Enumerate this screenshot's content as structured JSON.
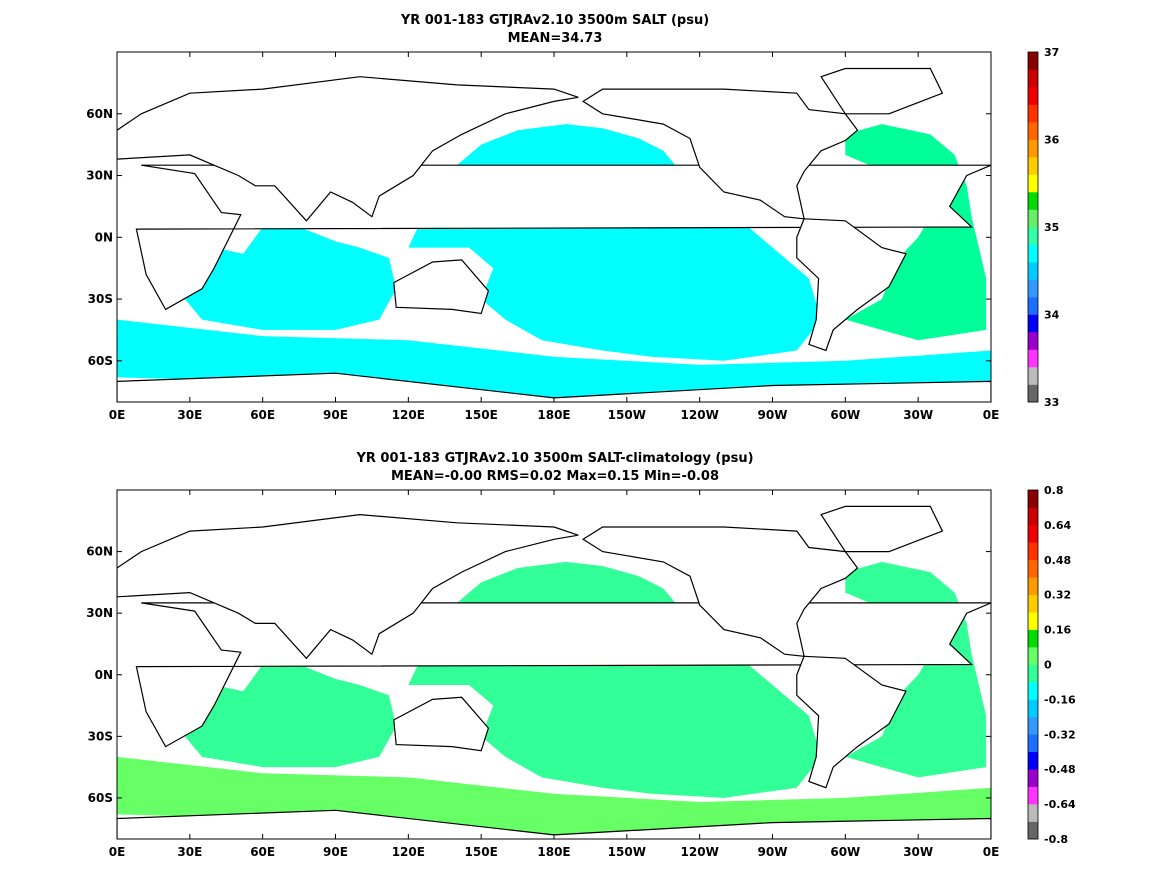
{
  "colors": {
    "land": "#ffffff",
    "coast": "#000000",
    "frame": "#000000"
  },
  "panels": [
    {
      "title_line1": "YR 001-183 GTJRAv2.10 3500m SALT (psu)",
      "title_line2": "MEAN=34.73",
      "x_ticks": [
        "0E",
        "30E",
        "60E",
        "90E",
        "120E",
        "150E",
        "180E",
        "150W",
        "120W",
        "90W",
        "60W",
        "30W",
        "0E"
      ],
      "y_ticks": [
        "60N",
        "30N",
        "0N",
        "30S",
        "60S"
      ],
      "colorbar": {
        "labels": [
          "37",
          "36",
          "35",
          "34",
          "33"
        ],
        "colors": [
          "#666666",
          "#bbbbbb",
          "#ff33ff",
          "#9900cc",
          "#0000ff",
          "#1e6fff",
          "#3399ff",
          "#00ccff",
          "#00ffff",
          "#33ffaa",
          "#66ee66",
          "#00dd00",
          "#ffff00",
          "#ffcc00",
          "#ff9900",
          "#ff6600",
          "#ff3300",
          "#ee0000",
          "#cc0000",
          "#880000"
        ]
      },
      "regions": [
        {
          "color": "#00ffff",
          "name": "Pacific"
        },
        {
          "color": "#00ffff",
          "name": "Indian"
        },
        {
          "color": "#00ffff",
          "name": "Southern"
        },
        {
          "color": "#00ff99",
          "name": "Atlantic"
        }
      ]
    },
    {
      "title_line1": "YR 001-183 GTJRAv2.10 3500m SALT-climatology (psu)",
      "title_line2": "MEAN=-0.00   RMS=0.02   Max=0.15   Min=-0.08",
      "x_ticks": [
        "0E",
        "30E",
        "60E",
        "90E",
        "120E",
        "150E",
        "180E",
        "150W",
        "120W",
        "90W",
        "60W",
        "30W",
        "0E"
      ],
      "y_ticks": [
        "60N",
        "30N",
        "0N",
        "30S",
        "60S"
      ],
      "colorbar": {
        "labels": [
          "0.8",
          "0.64",
          "0.48",
          "0.32",
          "0.16",
          "0",
          "-0.16",
          "-0.32",
          "-0.48",
          "-0.64",
          "-0.8"
        ],
        "colors": [
          "#666666",
          "#bbbbbb",
          "#ff33ff",
          "#9900cc",
          "#0000ff",
          "#1e6fff",
          "#3399ff",
          "#00ccff",
          "#00ffff",
          "#33ff99",
          "#66ff66",
          "#00dd00",
          "#ffff00",
          "#ffcc00",
          "#ff9900",
          "#ff6600",
          "#ff3300",
          "#ee0000",
          "#cc0000",
          "#880000"
        ]
      },
      "regions": [
        {
          "color": "#33ff99",
          "name": "Pacific"
        },
        {
          "color": "#33ff99",
          "name": "Indian"
        },
        {
          "color": "#66ff66",
          "name": "Southern"
        },
        {
          "color": "#33ff99",
          "name": "Atlantic"
        }
      ]
    }
  ]
}
